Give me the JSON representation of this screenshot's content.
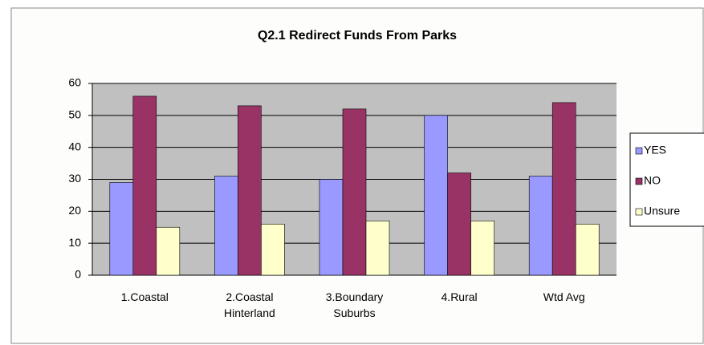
{
  "chart_data": {
    "type": "bar",
    "title": "Q2.1 Redirect Funds From Parks",
    "categories": [
      "1.Coastal",
      "2.Coastal Hinterland",
      "3.Boundary Suburbs",
      "4.Rural",
      "Wtd Avg"
    ],
    "series": [
      {
        "name": "YES",
        "color": "#9999ff",
        "values": [
          29,
          31,
          30,
          50,
          31
        ]
      },
      {
        "name": "NO",
        "color": "#993366",
        "values": [
          56,
          53,
          52,
          32,
          54
        ]
      },
      {
        "name": "Unsure",
        "color": "#ffffcc",
        "values": [
          15,
          16,
          17,
          17,
          16
        ]
      }
    ],
    "ylim": [
      0,
      60
    ],
    "yticks": [
      0,
      10,
      20,
      30,
      40,
      50,
      60
    ],
    "grid": true,
    "legend": "right"
  }
}
